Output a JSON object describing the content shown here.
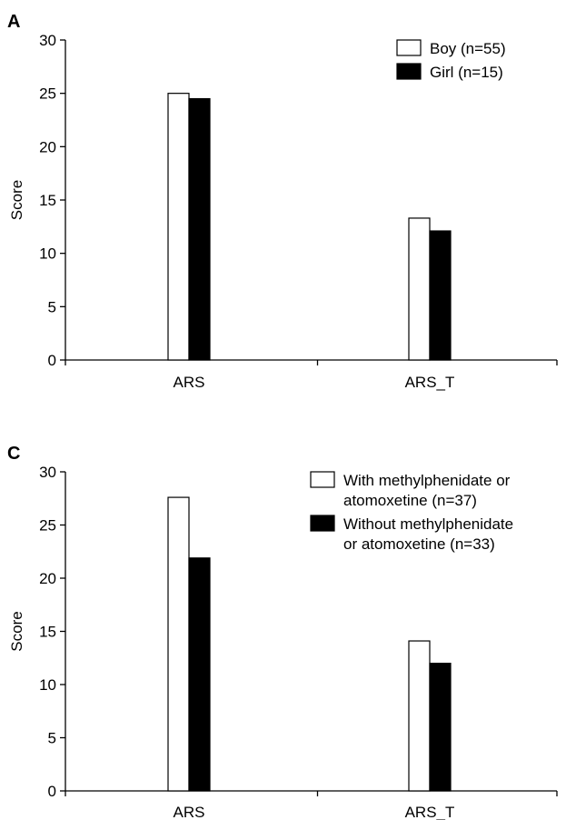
{
  "chart_data": [
    {
      "panel_label": "A",
      "type": "bar",
      "categories": [
        "ARS",
        "ARS_T"
      ],
      "series": [
        {
          "name": "Boy (n=55)",
          "values": [
            25,
            13.3
          ],
          "color": "#ffffff"
        },
        {
          "name": "Girl (n=15)",
          "values": [
            24.5,
            12.1
          ],
          "color": "#000000"
        }
      ],
      "ylabel": "Score",
      "ylim": [
        0,
        30
      ],
      "yticks": [
        0,
        5,
        10,
        15,
        20,
        25,
        30
      ],
      "legend_position": "top-right",
      "grid": false
    },
    {
      "panel_label": "C",
      "type": "bar",
      "categories": [
        "ARS",
        "ARS_T"
      ],
      "series": [
        {
          "name": "With methylphenidate or atomoxetine (n=37)",
          "name_lines": [
            "With methylphenidate or",
            "atomoxetine (n=37)"
          ],
          "values": [
            27.6,
            14.1
          ],
          "color": "#ffffff"
        },
        {
          "name": "Without methylphenidate or atomoxetine (n=33)",
          "name_lines": [
            "Without methylphenidate",
            "or atomoxetine (n=33)"
          ],
          "values": [
            21.9,
            12.0
          ],
          "color": "#000000"
        }
      ],
      "ylabel": "Score",
      "ylim": [
        0,
        30
      ],
      "yticks": [
        0,
        5,
        10,
        15,
        20,
        25,
        30
      ],
      "legend_position": "top-right",
      "grid": false
    }
  ]
}
